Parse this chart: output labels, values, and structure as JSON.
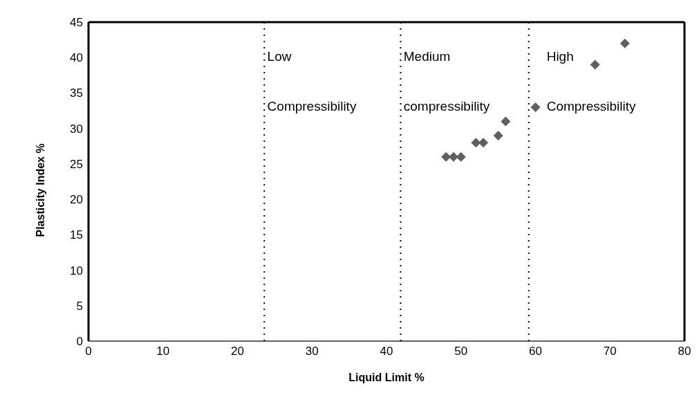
{
  "chart_data": {
    "type": "scatter",
    "xlabel": "Liquid  Limit  %",
    "ylabel": "Plasticity  Index %",
    "x": [
      48,
      49,
      50,
      52,
      53,
      55,
      56,
      60,
      68,
      72
    ],
    "series": [
      {
        "color": "#5f5f5f",
        "values": [
          26,
          26,
          26,
          28,
          28,
          29,
          31,
          33,
          39,
          42
        ]
      }
    ],
    "xlim": [
      0,
      80
    ],
    "xticks": [
      0,
      10,
      20,
      30,
      40,
      50,
      60,
      70,
      80
    ],
    "ylim": [
      0,
      45
    ],
    "yticks": [
      0,
      5,
      10,
      15,
      20,
      25,
      30,
      35,
      40,
      45
    ],
    "marker": "diamond",
    "grid": false,
    "legend": false,
    "ref_lines": [
      {
        "axis": "x",
        "value": 23.6,
        "color": "#000000",
        "line_style": "dotted"
      },
      {
        "axis": "x",
        "value": 41.9,
        "color": "#000000",
        "line_style": "dotted"
      },
      {
        "axis": "x",
        "value": 59.1,
        "color": "#000000",
        "line_style": "dotted"
      }
    ],
    "annotations": [
      "Low",
      "Compressibility",
      "Medium",
      "compressibility",
      "High",
      "Compressibility"
    ]
  }
}
